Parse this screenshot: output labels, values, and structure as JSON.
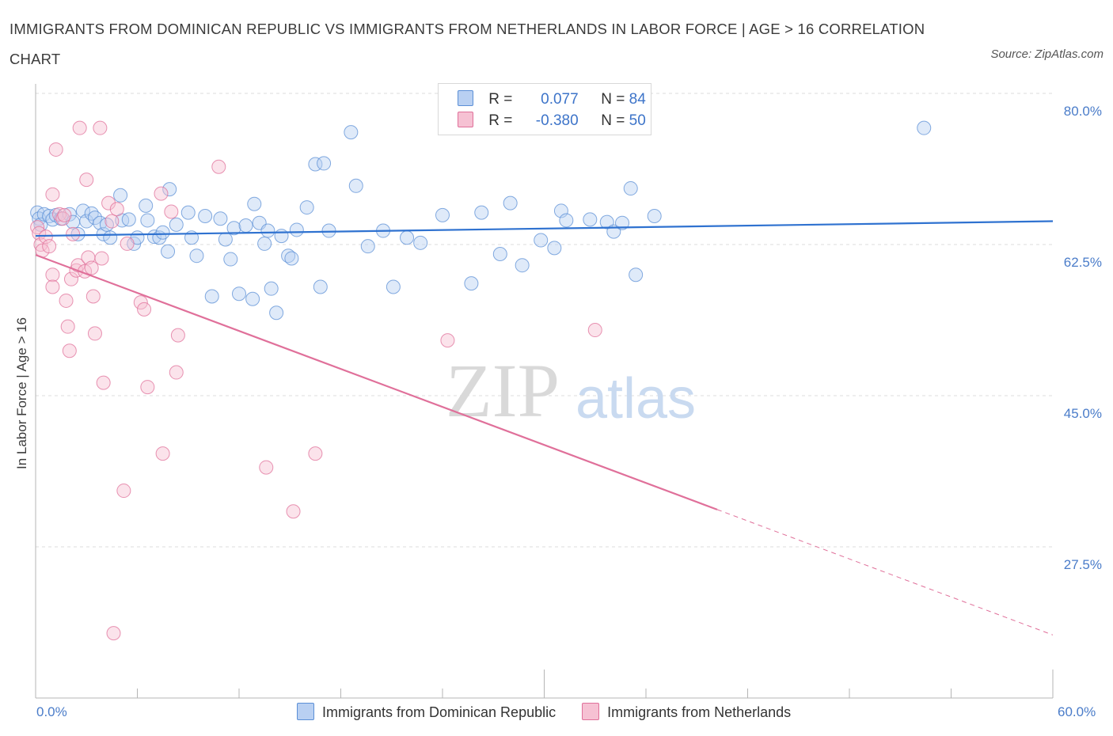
{
  "title": "IMMIGRANTS FROM DOMINICAN REPUBLIC VS IMMIGRANTS FROM NETHERLANDS IN LABOR FORCE | AGE > 16 CORRELATION CHART",
  "source": "Source: ZipAtlas.com",
  "watermark": {
    "zip": "ZIP",
    "atlas": "atlas"
  },
  "colors": {
    "blue": "#5b8fd6",
    "blue_fill": "#b9d0f2",
    "pink": "#e0709a",
    "pink_fill": "#f6c1d3"
  },
  "legend_top": {
    "rows": [
      {
        "r_label": "R =",
        "r_value": "0.077",
        "n_label": "N =",
        "n_value": "84"
      },
      {
        "r_label": "R =",
        "r_value": "-0.380",
        "n_label": "N =",
        "n_value": "50"
      }
    ]
  },
  "chart_data": {
    "type": "scatter",
    "xlabel": "",
    "ylabel": "In Labor Force | Age > 16",
    "xlim": [
      0,
      60
    ],
    "ylim": [
      10,
      80
    ],
    "x_tick_labels": [
      "0.0%",
      "60.0%"
    ],
    "y_tick_labels": [
      "80.0%",
      "62.5%",
      "45.0%",
      "27.5%"
    ],
    "y_ticks": [
      80,
      62.5,
      45,
      27.5
    ],
    "grid": true,
    "legend_position": "bottom",
    "series": [
      {
        "name": "Immigrants from Dominican Republic",
        "color": "#5b8fd6",
        "R": 0.077,
        "N": 84,
        "trend": {
          "x": [
            0,
            60
          ],
          "y": [
            63.5,
            65.2
          ],
          "dashed_from": null
        },
        "points": [
          [
            0.1,
            66.2
          ],
          [
            0.2,
            65.5
          ],
          [
            0.3,
            64.8
          ],
          [
            0.5,
            66.0
          ],
          [
            0.8,
            65.8
          ],
          [
            1.0,
            65.4
          ],
          [
            1.2,
            65.9
          ],
          [
            1.5,
            65.5
          ],
          [
            2.0,
            66.0
          ],
          [
            2.2,
            65.1
          ],
          [
            2.5,
            63.7
          ],
          [
            2.8,
            66.4
          ],
          [
            3.0,
            65.2
          ],
          [
            3.3,
            66.1
          ],
          [
            3.5,
            65.6
          ],
          [
            3.8,
            65.0
          ],
          [
            4.0,
            63.7
          ],
          [
            4.2,
            64.8
          ],
          [
            4.4,
            63.3
          ],
          [
            5.0,
            68.2
          ],
          [
            5.1,
            65.3
          ],
          [
            5.5,
            65.4
          ],
          [
            5.8,
            62.6
          ],
          [
            6.0,
            63.3
          ],
          [
            6.5,
            67.0
          ],
          [
            6.6,
            65.3
          ],
          [
            7.0,
            63.4
          ],
          [
            7.3,
            63.3
          ],
          [
            7.5,
            63.9
          ],
          [
            7.8,
            61.7
          ],
          [
            7.9,
            68.9
          ],
          [
            8.3,
            64.8
          ],
          [
            9.0,
            66.2
          ],
          [
            9.2,
            63.3
          ],
          [
            9.5,
            61.2
          ],
          [
            10.0,
            65.8
          ],
          [
            10.4,
            56.5
          ],
          [
            10.9,
            65.5
          ],
          [
            11.2,
            63.1
          ],
          [
            11.5,
            60.8
          ],
          [
            11.7,
            64.4
          ],
          [
            12.0,
            56.8
          ],
          [
            12.4,
            64.7
          ],
          [
            12.8,
            56.2
          ],
          [
            12.9,
            67.2
          ],
          [
            13.2,
            65.0
          ],
          [
            13.5,
            62.6
          ],
          [
            13.7,
            64.1
          ],
          [
            13.9,
            57.4
          ],
          [
            14.2,
            54.6
          ],
          [
            14.5,
            63.5
          ],
          [
            14.9,
            61.2
          ],
          [
            15.1,
            60.9
          ],
          [
            15.4,
            64.2
          ],
          [
            16.0,
            66.8
          ],
          [
            16.5,
            71.8
          ],
          [
            16.8,
            57.6
          ],
          [
            17.0,
            71.9
          ],
          [
            17.3,
            64.1
          ],
          [
            18.6,
            75.5
          ],
          [
            18.9,
            69.3
          ],
          [
            19.6,
            62.3
          ],
          [
            20.5,
            64.1
          ],
          [
            21.1,
            57.6
          ],
          [
            21.9,
            63.3
          ],
          [
            22.7,
            62.7
          ],
          [
            24.0,
            65.9
          ],
          [
            25.7,
            58.0
          ],
          [
            26.3,
            66.2
          ],
          [
            27.4,
            61.4
          ],
          [
            28.0,
            67.3
          ],
          [
            28.7,
            60.1
          ],
          [
            29.8,
            63.0
          ],
          [
            30.6,
            62.1
          ],
          [
            31.0,
            66.4
          ],
          [
            31.3,
            65.3
          ],
          [
            32.7,
            65.4
          ],
          [
            33.7,
            65.1
          ],
          [
            34.1,
            64.0
          ],
          [
            35.1,
            69.0
          ],
          [
            35.4,
            59.0
          ],
          [
            36.5,
            65.8
          ],
          [
            52.4,
            76.0
          ],
          [
            34.6,
            65.0
          ]
        ]
      },
      {
        "name": "Immigrants from Netherlands",
        "color": "#e0709a",
        "R": -0.38,
        "N": 50,
        "trend": {
          "x": [
            0,
            60
          ],
          "y": [
            61.3,
            17.3
          ],
          "dashed_from": 40.2
        },
        "points": [
          [
            0.1,
            64.5
          ],
          [
            0.2,
            63.8
          ],
          [
            0.3,
            62.5
          ],
          [
            0.4,
            61.8
          ],
          [
            0.6,
            63.4
          ],
          [
            0.8,
            62.3
          ],
          [
            1.0,
            68.3
          ],
          [
            1.0,
            59.0
          ],
          [
            1.0,
            57.6
          ],
          [
            1.2,
            73.5
          ],
          [
            1.4,
            66.0
          ],
          [
            1.6,
            65.5
          ],
          [
            1.8,
            56.0
          ],
          [
            1.9,
            53.0
          ],
          [
            2.0,
            50.2
          ],
          [
            2.1,
            58.5
          ],
          [
            2.2,
            63.7
          ],
          [
            2.4,
            59.5
          ],
          [
            2.5,
            60.1
          ],
          [
            2.6,
            76.0
          ],
          [
            2.9,
            59.4
          ],
          [
            3.0,
            70.0
          ],
          [
            3.1,
            61.0
          ],
          [
            3.3,
            59.8
          ],
          [
            3.4,
            56.5
          ],
          [
            3.5,
            52.2
          ],
          [
            3.8,
            76.0
          ],
          [
            3.9,
            60.9
          ],
          [
            4.0,
            46.5
          ],
          [
            4.3,
            67.3
          ],
          [
            4.5,
            65.2
          ],
          [
            4.8,
            66.6
          ],
          [
            4.6,
            17.5
          ],
          [
            5.2,
            34.0
          ],
          [
            5.4,
            62.6
          ],
          [
            6.2,
            55.8
          ],
          [
            6.4,
            55.0
          ],
          [
            6.6,
            46.0
          ],
          [
            7.4,
            68.4
          ],
          [
            7.5,
            38.3
          ],
          [
            8.0,
            66.3
          ],
          [
            8.3,
            47.7
          ],
          [
            8.4,
            52.0
          ],
          [
            10.8,
            71.5
          ],
          [
            13.6,
            36.7
          ],
          [
            15.2,
            31.6
          ],
          [
            16.5,
            38.3
          ],
          [
            24.3,
            51.4
          ],
          [
            33.0,
            52.6
          ],
          [
            1.7,
            65.9
          ]
        ]
      }
    ]
  }
}
